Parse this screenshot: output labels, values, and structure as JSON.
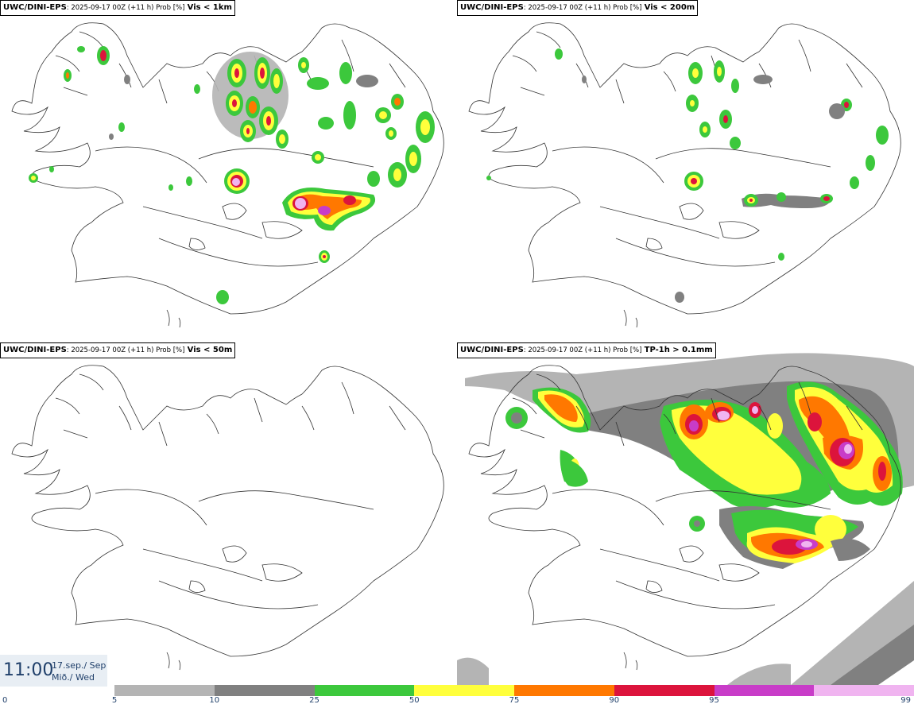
{
  "panels": [
    {
      "model": "UWC/DINI-EPS",
      "meta": ": 2025-09-17 00Z (+11 h) Prob [%]",
      "var": "Vis < 1km"
    },
    {
      "model": "UWC/DINI-EPS",
      "meta": ": 2025-09-17 00Z (+11 h) Prob [%]",
      "var": "Vis < 200m"
    },
    {
      "model": "UWC/DINI-EPS",
      "meta": ": 2025-09-17 00Z (+11 h) Prob [%]",
      "var": "Vis < 50m"
    },
    {
      "model": "UWC/DINI-EPS",
      "meta": ": 2025-09-17 00Z (+11 h) Prob [%]",
      "var": "TP-1h > 0.1mm"
    }
  ],
  "time": {
    "hour": "11:00",
    "date_line1": "17.sep./ Sep",
    "date_line2": "Mið./ Wed"
  },
  "colorbar": {
    "ticks": [
      "0",
      "5",
      "10",
      "25",
      "50",
      "75",
      "90",
      "95",
      "99"
    ],
    "colors": [
      "#b4b4b4",
      "#808080",
      "#3cc83c",
      "#ffff3c",
      "#ff7800",
      "#dc143c",
      "#c83cc8",
      "#f0b4f0"
    ]
  }
}
